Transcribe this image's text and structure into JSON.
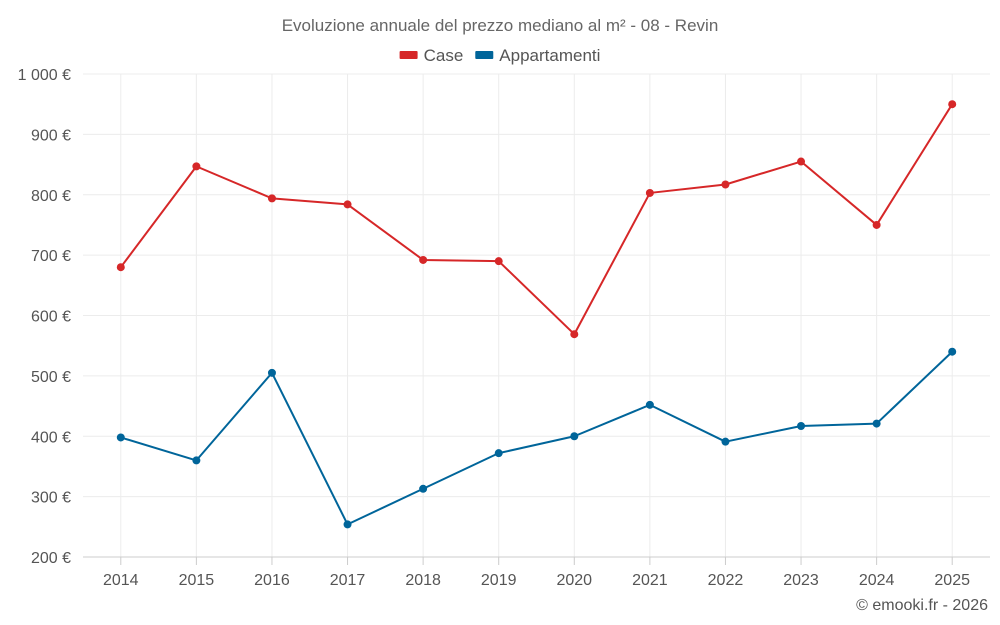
{
  "chart_data": {
    "type": "line",
    "title": "Evoluzione annuale del prezzo mediano al m² - 08 - Revin",
    "categories": [
      "2014",
      "2015",
      "2016",
      "2017",
      "2018",
      "2019",
      "2020",
      "2021",
      "2022",
      "2023",
      "2024",
      "2025"
    ],
    "series": [
      {
        "name": "Case",
        "color": "#d62728",
        "values": [
          680,
          847,
          794,
          784,
          692,
          690,
          569,
          803,
          817,
          855,
          750,
          950
        ]
      },
      {
        "name": "Appartamenti",
        "color": "#00659a",
        "values": [
          398,
          360,
          505,
          254,
          313,
          372,
          400,
          452,
          391,
          417,
          421,
          540
        ]
      }
    ],
    "ylim": [
      200,
      1000
    ],
    "yticks": [
      200,
      300,
      400,
      500,
      600,
      700,
      800,
      900,
      1000
    ],
    "ytick_labels": [
      "200 €",
      "300 €",
      "400 €",
      "500 €",
      "600 €",
      "700 €",
      "800 €",
      "900 €",
      "1 000 €"
    ],
    "xlabel": "",
    "ylabel": "",
    "grid": true,
    "legend": "top-center"
  },
  "credit": "© emooki.fr - 2026"
}
